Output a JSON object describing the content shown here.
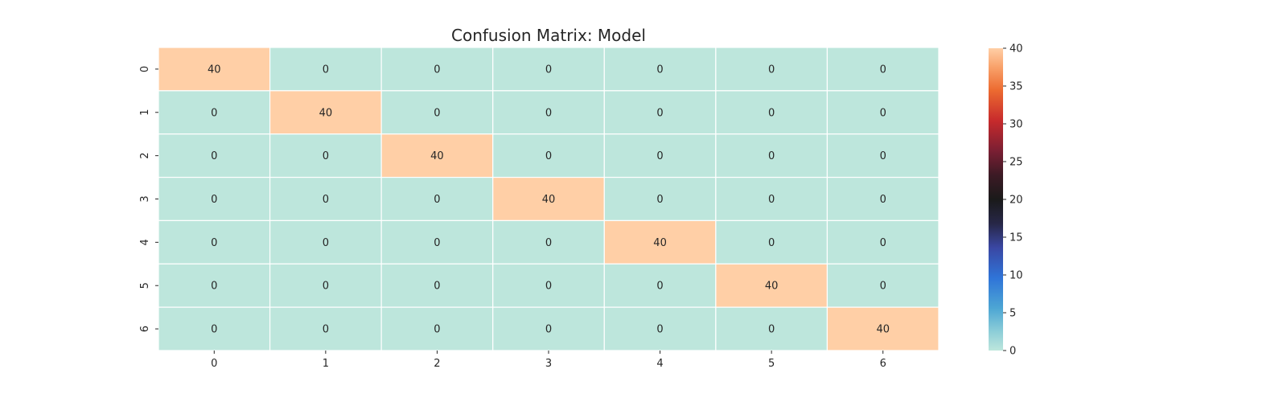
{
  "chart_data": {
    "type": "heatmap",
    "title": "Confusion Matrix: Model",
    "xlabel": "",
    "ylabel": "",
    "row_labels": [
      "0",
      "1",
      "2",
      "3",
      "4",
      "5",
      "6"
    ],
    "col_labels": [
      "0",
      "1",
      "2",
      "3",
      "4",
      "5",
      "6"
    ],
    "values": [
      [
        40,
        0,
        0,
        0,
        0,
        0,
        0
      ],
      [
        0,
        40,
        0,
        0,
        0,
        0,
        0
      ],
      [
        0,
        0,
        40,
        0,
        0,
        0,
        0
      ],
      [
        0,
        0,
        0,
        40,
        0,
        0,
        0
      ],
      [
        0,
        0,
        0,
        0,
        40,
        0,
        0
      ],
      [
        0,
        0,
        0,
        0,
        0,
        40,
        0
      ],
      [
        0,
        0,
        0,
        0,
        0,
        0,
        40
      ]
    ],
    "colorbar": {
      "range": [
        0,
        40
      ],
      "ticks": [
        0,
        5,
        10,
        15,
        20,
        25,
        30,
        35,
        40
      ],
      "colormap": "icefire",
      "low_color": "#bde6dc",
      "high_color": "#ffcfa6"
    },
    "grid": false
  }
}
